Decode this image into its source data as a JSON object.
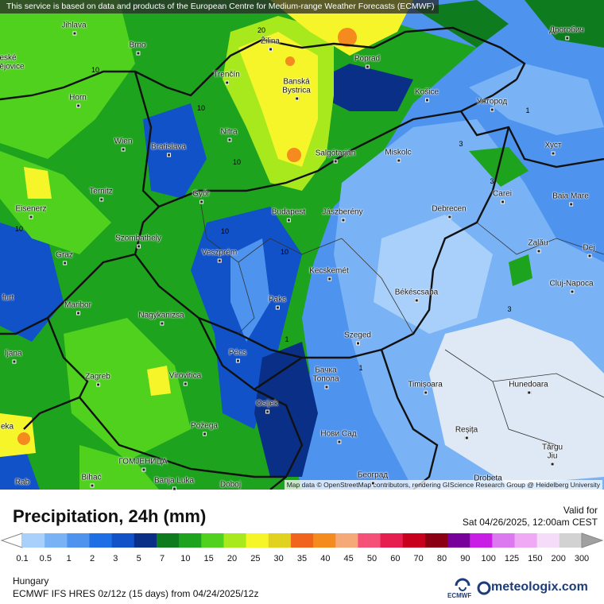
{
  "map": {
    "notice": "This service is based on data and products of the European Centre for Medium-range Weather Forecasts (ECMWF)",
    "attribution": "Map data © OpenStreetMap contributors, rendering GIScience Research Group @ Heidelberg University",
    "cities": [
      "Jihlava",
      "Brno",
      "Žilina",
      "Poprad",
      "Дрогобич",
      "eské",
      "ějovice",
      "Horn",
      "Trenčín",
      "Banská",
      "Bystrica",
      "Košice",
      "Ужгород",
      "Wien",
      "Bratislava",
      "Nitra",
      "Salgótarján",
      "Miskolc",
      "Хуст",
      "Ternitz",
      "Győr",
      "Carei",
      "Baia Mare",
      "Eisenerz",
      "Budapest",
      "Jászberény",
      "Debrecen",
      "Szombathely",
      "Graz",
      "Veszprém",
      "Zalău",
      "Dej",
      "Kecskemét",
      "Cluj-Napoca",
      "furt",
      "Paks",
      "Békéscsaba",
      "Maribor",
      "Nagykanizsa",
      "Szeged",
      "ljana",
      "Pécs",
      "Бачка",
      "Топола",
      "Zagreb",
      "Virovitica",
      "Timișoara",
      "Hunedoara",
      "Osijek",
      "eka",
      "Požega",
      "Нови Сад",
      "Reșița",
      "Târgu",
      "Jiu",
      "ГОМЈЕНИЦА",
      "Bihać",
      "Banja Luka",
      "Doboj",
      "Београд",
      "Drobeta",
      "Rab"
    ],
    "contour_labels": [
      "20",
      "10",
      "10",
      "10",
      "10",
      "10",
      "10",
      "1",
      "3",
      "3",
      "1",
      "1",
      "3"
    ]
  },
  "panel": {
    "title": "Precipitation, 24h (mm)",
    "valid_label": "Valid for",
    "valid_time": "Sat 04/26/2025, 12:00am CEST",
    "region": "Hungary",
    "model": "ECMWF IFS HRES 0z/12z (15 days) from 04/24/2025/12z",
    "ecmwf": "ECMWF",
    "brand": "meteologix.com",
    "legend_labels": [
      "0.1",
      "0.5",
      "1",
      "2",
      "3",
      "5",
      "7",
      "10",
      "15",
      "20",
      "25",
      "30",
      "35",
      "40",
      "45",
      "50",
      "60",
      "70",
      "80",
      "90",
      "100",
      "125",
      "150",
      "200",
      "300"
    ],
    "legend_colors": [
      "#a9d0fb",
      "#79b3f5",
      "#4e94ef",
      "#1e6fe6",
      "#1152c9",
      "#0a2f86",
      "#0f7b1f",
      "#1ea31e",
      "#4fd11e",
      "#a8e91e",
      "#f5f52a",
      "#e0d21e",
      "#f0641e",
      "#f58a1e",
      "#f5a878",
      "#f55078",
      "#e61e50",
      "#c8001e",
      "#8c0014",
      "#78009b",
      "#c81ee6",
      "#dc78f0",
      "#f0aaf5",
      "#f5dcf8",
      "#d2d2d2"
    ]
  }
}
